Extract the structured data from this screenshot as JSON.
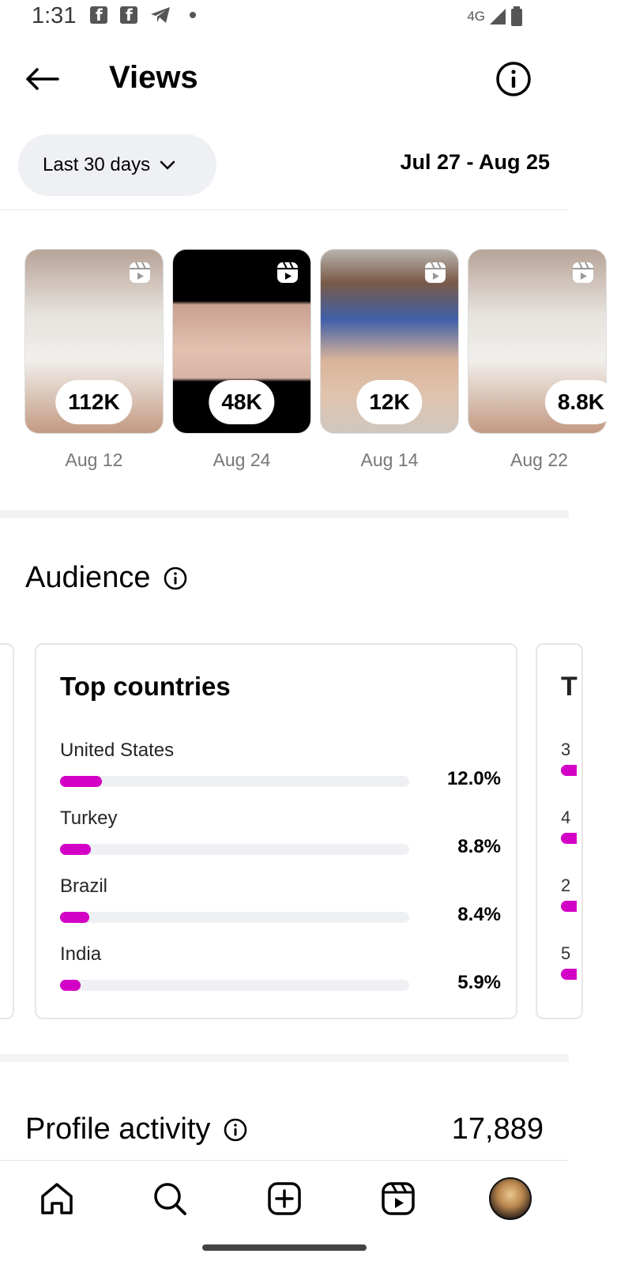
{
  "status_bar": {
    "time": "1:31",
    "network": "4G"
  },
  "header": {
    "title": "Views"
  },
  "filter": {
    "range_label": "Last 30 days",
    "date_range": "Jul 27 - Aug 25"
  },
  "reels": [
    {
      "views": "112K",
      "date": "Aug 12"
    },
    {
      "views": "48K",
      "date": "Aug 24"
    },
    {
      "views": "12K",
      "date": "Aug 14"
    },
    {
      "views": "8.8K",
      "date": "Aug 22"
    }
  ],
  "audience": {
    "title": "Audience",
    "top_countries": {
      "title": "Top countries",
      "rows": [
        {
          "name": "United States",
          "percent": "12.0%",
          "fraction": 0.12
        },
        {
          "name": "Turkey",
          "percent": "8.8%",
          "fraction": 0.088
        },
        {
          "name": "Brazil",
          "percent": "8.4%",
          "fraction": 0.084
        },
        {
          "name": "India",
          "percent": "5.9%",
          "fraction": 0.059
        }
      ]
    },
    "next_card": {
      "title_initial": "T",
      "row_initials": [
        "3",
        "4",
        "2",
        "5"
      ]
    }
  },
  "profile_activity": {
    "title": "Profile activity",
    "value": "17,889"
  },
  "colors": {
    "accent": "#d300c5",
    "track": "#eff0f3"
  },
  "nav": {
    "icons": [
      "home-icon",
      "search-icon",
      "create-icon",
      "reels-icon",
      "profile-avatar"
    ]
  }
}
